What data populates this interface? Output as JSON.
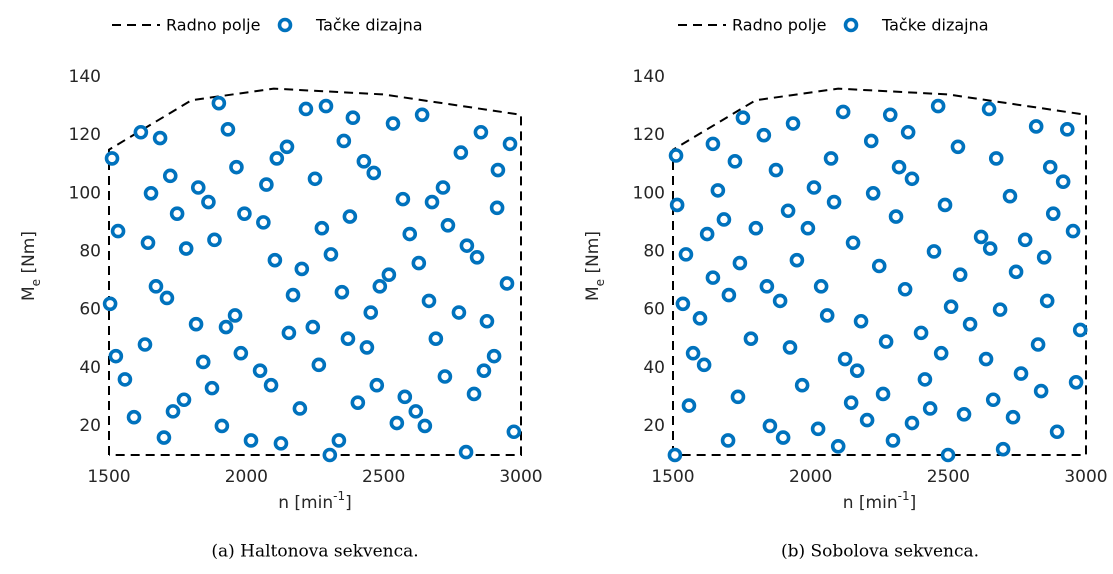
{
  "chart_data": [
    {
      "type": "scatter",
      "caption": "(a) Haltonova sekvenca.",
      "xlabel_parts": [
        "n [min",
        "-1",
        "]"
      ],
      "ylabel_parts": [
        "M",
        "e",
        " [Nm]"
      ],
      "xlim": [
        1500,
        3000
      ],
      "xticks": [
        1500,
        2000,
        2500,
        3000
      ],
      "ylim": [
        10,
        140
      ],
      "yticks": [
        20,
        40,
        60,
        80,
        100,
        120,
        140
      ],
      "series": [
        {
          "name": "Radno polje",
          "kind": "line",
          "dashed": true,
          "color": "#000000",
          "x": [
            1500,
            1500,
            1800,
            2100,
            2500,
            3000,
            3000,
            1500
          ],
          "y": [
            10,
            115,
            132,
            136,
            134,
            127,
            10,
            10
          ]
        },
        {
          "name": "Tačke dizajna",
          "kind": "scatter",
          "color": "#0072BD",
          "x": [
            1511,
            1616,
            1686,
            1900,
            1933,
            2217,
            2290,
            2388,
            2534,
            2640,
            2854,
            2960,
            1533,
            1642,
            1653,
            1723,
            1748,
            1781,
            1825,
            1862,
            1884,
            1964,
            1993,
            2062,
            2073,
            2104,
            2111,
            2148,
            2250,
            2202,
            2275,
            2308,
            2355,
            2377,
            2428,
            2464,
            2348,
            2519,
            2570,
            2595,
            2628,
            2676,
            2716,
            2734,
            2781,
            2803,
            2840,
            2916,
            2913,
            2949,
            1504,
            1671,
            1711,
            1525,
            1558,
            1631,
            1591,
            1733,
            1773,
            1700,
            1817,
            1843,
            1875,
            1911,
            1926,
            1959,
            1980,
            2017,
            2050,
            2090,
            2126,
            2170,
            2155,
            2195,
            2242,
            2264,
            2304,
            2337,
            2370,
            2406,
            2439,
            2453,
            2475,
            2486,
            2548,
            2577,
            2617,
            2650,
            2665,
            2690,
            2723,
            2774,
            2800,
            2829,
            2865,
            2876,
            2902,
            2974
          ],
          "y": [
            112,
            121,
            119,
            131,
            122,
            129,
            130,
            126,
            124,
            127,
            121,
            117,
            87,
            83,
            100,
            106,
            93,
            81,
            102,
            97,
            84,
            109,
            93,
            90,
            103,
            77,
            112,
            116,
            105,
            74,
            88,
            79,
            118,
            92,
            111,
            107,
            66,
            72,
            98,
            86,
            76,
            97,
            102,
            89,
            114,
            82,
            78,
            108,
            95,
            69,
            62,
            68,
            64,
            44,
            36,
            48,
            23,
            25,
            29,
            16,
            55,
            42,
            33,
            20,
            54,
            58,
            45,
            15,
            39,
            34,
            14,
            65,
            52,
            26,
            54,
            41,
            10,
            15,
            50,
            28,
            47,
            59,
            34,
            68,
            21,
            30,
            25,
            20,
            63,
            50,
            37,
            59,
            11,
            31,
            39,
            56,
            44,
            18
          ]
        }
      ]
    },
    {
      "type": "scatter",
      "caption": "(b) Sobolova sekvenca.",
      "xlabel_parts": [
        "n [min",
        "-1",
        "]"
      ],
      "ylabel_parts": [
        "M",
        "e",
        " [Nm]"
      ],
      "xlim": [
        1500,
        3000
      ],
      "xticks": [
        1500,
        2000,
        2500,
        3000
      ],
      "ylim": [
        10,
        140
      ],
      "yticks": [
        20,
        40,
        60,
        80,
        100,
        120,
        140
      ],
      "series": [
        {
          "name": "Radno polje",
          "kind": "line",
          "dashed": true,
          "color": "#000000",
          "x": [
            1500,
            1500,
            1800,
            2100,
            2500,
            3000,
            3000,
            1500
          ],
          "y": [
            10,
            115,
            132,
            136,
            134,
            127,
            10,
            10
          ]
        },
        {
          "name": "Tačke dizajna",
          "kind": "scatter",
          "color": "#0072BD",
          "x": [
            1511,
            1515,
            1547,
            1536,
            1558,
            1507,
            1573,
            1598,
            1613,
            1624,
            1645,
            1645,
            1663,
            1685,
            1703,
            1725,
            1736,
            1743,
            1754,
            1700,
            1783,
            1801,
            1830,
            1841,
            1852,
            1874,
            1889,
            1900,
            1918,
            1925,
            1936,
            1950,
            1969,
            1990,
            2012,
            2027,
            2038,
            2060,
            2074,
            2085,
            2100,
            2118,
            2125,
            2147,
            2154,
            2169,
            2183,
            2205,
            2220,
            2227,
            2249,
            2263,
            2274,
            2289,
            2299,
            2310,
            2321,
            2354,
            2368,
            2343,
            2368,
            2401,
            2415,
            2434,
            2448,
            2463,
            2474,
            2488,
            2499,
            2510,
            2535,
            2543,
            2557,
            2579,
            2619,
            2637,
            2648,
            2652,
            2663,
            2674,
            2688,
            2699,
            2724,
            2735,
            2746,
            2764,
            2779,
            2819,
            2826,
            2837,
            2848,
            2859,
            2870,
            2881,
            2895,
            2917,
            2932,
            2953,
            2964,
            2979
          ],
          "y": [
            113,
            96,
            79,
            62,
            27,
            10,
            45,
            57,
            41,
            86,
            117,
            71,
            101,
            91,
            65,
            111,
            30,
            76,
            126,
            15,
            50,
            88,
            120,
            68,
            20,
            108,
            63,
            16,
            94,
            47,
            124,
            77,
            34,
            88,
            102,
            19,
            68,
            58,
            112,
            97,
            13,
            128,
            43,
            28,
            83,
            39,
            56,
            22,
            118,
            100,
            75,
            31,
            49,
            127,
            15,
            92,
            109,
            121,
            105,
            67,
            21,
            52,
            36,
            26,
            80,
            130,
            45,
            96,
            10,
            61,
            116,
            72,
            24,
            55,
            85,
            43,
            129,
            81,
            29,
            112,
            60,
            12,
            99,
            23,
            73,
            38,
            84,
            123,
            48,
            32,
            78,
            63,
            109,
            93,
            18,
            104,
            122,
            87,
            35,
            53
          ]
        }
      ]
    }
  ]
}
